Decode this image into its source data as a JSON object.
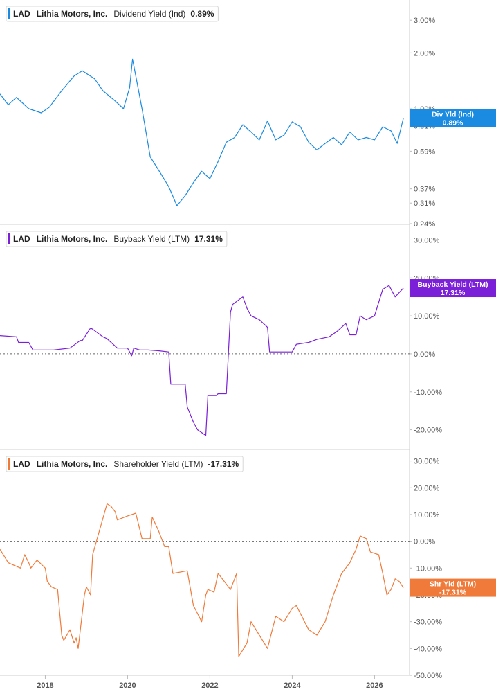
{
  "chart_data": [
    {
      "type": "line",
      "scale": "log",
      "legend": {
        "ticker": "LAD",
        "company": "Lithia Motors, Inc.",
        "metric": "Dividend Yield (Ind)",
        "value": "0.89%"
      },
      "badge": {
        "line1": "Div Yld (Ind)",
        "line2": "0.89%"
      },
      "color": "#1a8be0",
      "ylim": [
        0.24,
        3.6
      ],
      "yticks": [
        {
          "value": 3.0,
          "label": "3.00%"
        },
        {
          "value": 2.0,
          "label": "2.00%"
        },
        {
          "value": 1.0,
          "label": "1.00%"
        },
        {
          "value": 0.81,
          "label": "0.81%"
        },
        {
          "value": 0.59,
          "label": "0.59%"
        },
        {
          "value": 0.37,
          "label": "0.37%"
        },
        {
          "value": 0.31,
          "label": "0.31%"
        },
        {
          "value": 0.24,
          "label": "0.24%"
        }
      ],
      "x": [
        2016.9,
        2017.1,
        2017.3,
        2017.6,
        2017.9,
        2018.1,
        2018.4,
        2018.7,
        2018.9,
        2019.2,
        2019.4,
        2019.7,
        2019.9,
        2020.05,
        2020.12,
        2020.2,
        2020.35,
        2020.55,
        2020.8,
        2021.0,
        2021.2,
        2021.4,
        2021.6,
        2021.8,
        2022.0,
        2022.2,
        2022.4,
        2022.6,
        2022.8,
        2023.0,
        2023.2,
        2023.4,
        2023.6,
        2023.8,
        2024.0,
        2024.2,
        2024.4,
        2024.6,
        2024.8,
        2025.0,
        2025.2,
        2025.4,
        2025.6,
        2025.8,
        2026.0,
        2026.2,
        2026.4,
        2026.55,
        2026.7
      ],
      "values": [
        1.2,
        1.05,
        1.15,
        1.0,
        0.95,
        1.02,
        1.25,
        1.5,
        1.6,
        1.45,
        1.25,
        1.1,
        1.0,
        1.3,
        1.85,
        1.5,
        1.0,
        0.55,
        0.45,
        0.38,
        0.3,
        0.34,
        0.4,
        0.46,
        0.42,
        0.52,
        0.66,
        0.7,
        0.82,
        0.75,
        0.68,
        0.86,
        0.68,
        0.72,
        0.85,
        0.8,
        0.66,
        0.6,
        0.65,
        0.7,
        0.64,
        0.75,
        0.68,
        0.7,
        0.68,
        0.8,
        0.76,
        0.65,
        0.89
      ]
    },
    {
      "type": "line",
      "legend": {
        "ticker": "LAD",
        "company": "Lithia Motors, Inc.",
        "metric": "Buyback Yield (LTM)",
        "value": "17.31%"
      },
      "badge": {
        "line1": "Buyback Yield (LTM)",
        "line2": "17.31%"
      },
      "color": "#7b1fd8",
      "ylim": [
        -25,
        33
      ],
      "yticks": [
        {
          "value": 30,
          "label": "30.00%"
        },
        {
          "value": 20,
          "label": "20.00%"
        },
        {
          "value": 10,
          "label": "10.00%"
        },
        {
          "value": 0,
          "label": "0.00%"
        },
        {
          "value": -10,
          "label": "-10.00%"
        },
        {
          "value": -20,
          "label": "-20.00%"
        }
      ],
      "zero_line": true,
      "x": [
        2016.9,
        2017.3,
        2017.35,
        2017.6,
        2017.7,
        2018.2,
        2018.6,
        2018.85,
        2018.9,
        2019.1,
        2019.15,
        2019.4,
        2019.5,
        2019.75,
        2020.0,
        2020.1,
        2020.15,
        2020.3,
        2020.5,
        2020.75,
        2021.0,
        2021.05,
        2021.4,
        2021.45,
        2021.6,
        2021.7,
        2021.9,
        2021.95,
        2022.15,
        2022.2,
        2022.4,
        2022.5,
        2022.55,
        2022.8,
        2022.9,
        2023.0,
        2023.2,
        2023.4,
        2023.45,
        2023.6,
        2024.0,
        2024.1,
        2024.4,
        2024.6,
        2024.9,
        2025.1,
        2025.3,
        2025.4,
        2025.55,
        2025.65,
        2025.8,
        2026.0,
        2026.2,
        2026.35,
        2026.5,
        2026.7
      ],
      "values": [
        4.8,
        4.5,
        3.0,
        3.0,
        1.0,
        1.0,
        1.5,
        3.5,
        3.5,
        6.8,
        6.5,
        4.5,
        4.0,
        1.5,
        1.5,
        -0.5,
        1.5,
        1.0,
        1.0,
        0.8,
        0.5,
        -8.0,
        -8.0,
        -14.0,
        -18.0,
        -20.0,
        -21.5,
        -11.0,
        -11.0,
        -10.5,
        -10.5,
        11.0,
        13.0,
        15.0,
        12.0,
        10.0,
        9.0,
        7.0,
        0.5,
        0.5,
        0.5,
        2.5,
        3.0,
        3.8,
        4.5,
        6.0,
        8.0,
        5.0,
        5.0,
        10.0,
        9.0,
        10.0,
        17.0,
        18.0,
        15.0,
        17.31
      ]
    },
    {
      "type": "line",
      "legend": {
        "ticker": "LAD",
        "company": "Lithia Motors, Inc.",
        "metric": "Shareholder Yield (LTM)",
        "value": "-17.31%"
      },
      "badge": {
        "line1": "Shr Yld (LTM)",
        "line2": "-17.31%"
      },
      "color": "#f07a3a",
      "ylim": [
        -50,
        33
      ],
      "yticks": [
        {
          "value": 30,
          "label": "30.00%"
        },
        {
          "value": 20,
          "label": "20.00%"
        },
        {
          "value": 10,
          "label": "10.00%"
        },
        {
          "value": 0,
          "label": "0.00%"
        },
        {
          "value": -10,
          "label": "-10.00%"
        },
        {
          "value": -20,
          "label": "-20.00%"
        },
        {
          "value": -30,
          "label": "-30.00%"
        },
        {
          "value": -40,
          "label": "-40.00%"
        },
        {
          "value": -50,
          "label": "-50.00%"
        }
      ],
      "zero_line": true,
      "x": [
        2016.9,
        2017.1,
        2017.4,
        2017.5,
        2017.6,
        2017.65,
        2017.8,
        2018.0,
        2018.05,
        2018.15,
        2018.3,
        2018.4,
        2018.45,
        2018.6,
        2018.7,
        2018.75,
        2018.8,
        2018.95,
        2019.0,
        2019.1,
        2019.15,
        2019.5,
        2019.6,
        2019.7,
        2019.75,
        2020.0,
        2020.2,
        2020.35,
        2020.55,
        2020.6,
        2020.75,
        2020.9,
        2021.0,
        2021.1,
        2021.45,
        2021.6,
        2021.7,
        2021.8,
        2021.9,
        2021.95,
        2022.1,
        2022.2,
        2022.3,
        2022.5,
        2022.65,
        2022.7,
        2022.9,
        2023.0,
        2023.2,
        2023.4,
        2023.6,
        2023.8,
        2024.0,
        2024.1,
        2024.4,
        2024.6,
        2024.8,
        2025.0,
        2025.2,
        2025.4,
        2025.55,
        2025.65,
        2025.8,
        2025.9,
        2026.1,
        2026.2,
        2026.3,
        2026.4,
        2026.5,
        2026.6,
        2026.7
      ],
      "values": [
        -3.0,
        -8.0,
        -10.0,
        -5.0,
        -8.0,
        -10.0,
        -7.0,
        -10.0,
        -15.0,
        -17.0,
        -18.0,
        -35.0,
        -37.0,
        -33.0,
        -38.0,
        -36.0,
        -40.0,
        -20.0,
        -17.0,
        -20.0,
        -5.0,
        14.0,
        13.0,
        11.0,
        8.0,
        9.5,
        10.5,
        1.0,
        1.0,
        9.0,
        4.0,
        -2.0,
        -2.0,
        -12.0,
        -11.0,
        -24.0,
        -27.0,
        -30.0,
        -20.0,
        -18.0,
        -19.0,
        -12.0,
        -14.0,
        -18.0,
        -12.0,
        -43.0,
        -38.0,
        -30.0,
        -35.0,
        -40.0,
        -28.0,
        -30.0,
        -25.0,
        -24.0,
        -33.0,
        -35.0,
        -30.0,
        -20.0,
        -12.0,
        -8.0,
        -3.0,
        2.0,
        1.0,
        -4.0,
        -5.0,
        -12.0,
        -20.0,
        -18.0,
        -14.0,
        -15.0,
        -17.31
      ]
    }
  ],
  "x_axis": {
    "xlim": [
      2016.9,
      2026.85
    ],
    "ticks": [
      {
        "value": 2018,
        "label": "2018"
      },
      {
        "value": 2020,
        "label": "2020"
      },
      {
        "value": 2022,
        "label": "2022"
      },
      {
        "value": 2024,
        "label": "2024"
      },
      {
        "value": 2026,
        "label": "2026"
      }
    ]
  }
}
